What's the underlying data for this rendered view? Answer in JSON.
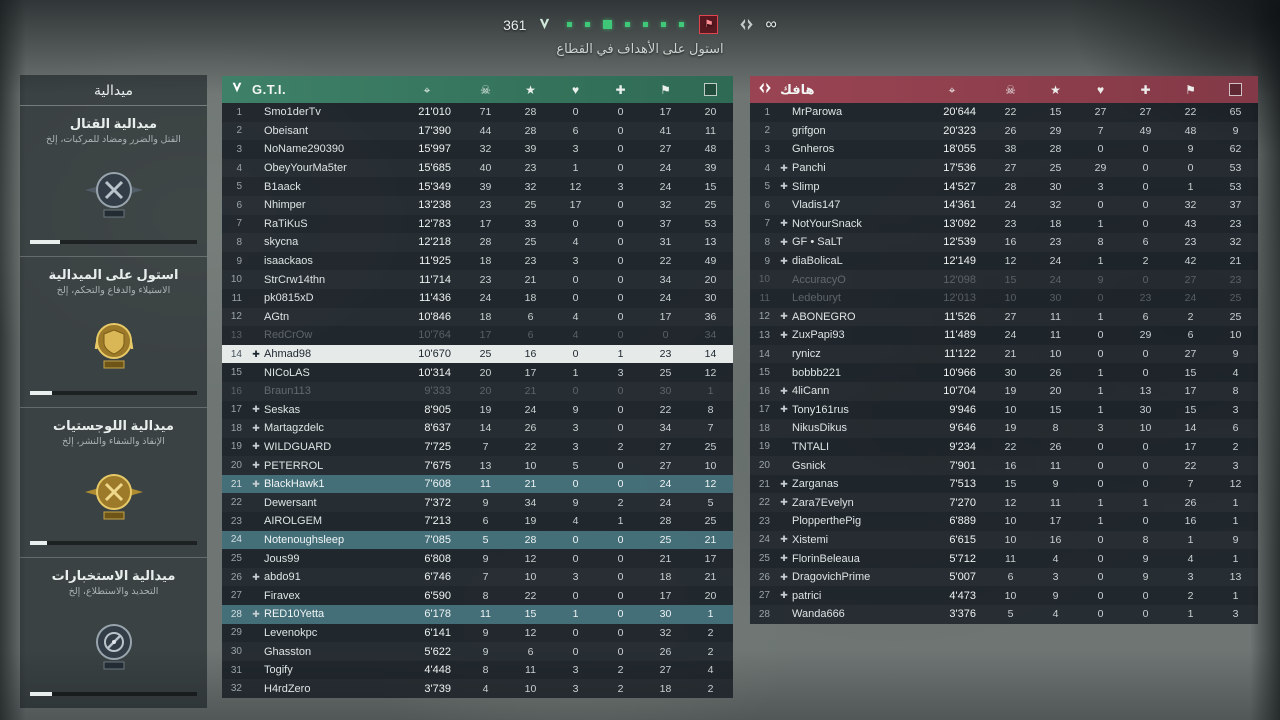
{
  "hud": {
    "tickets": "361",
    "enemy_tickets": "∞",
    "objective_hint": "استول على الأهداف في القطاع",
    "objective_count": 7,
    "accent_green": "#3fc878",
    "accent_red": "#e0444f"
  },
  "medals": {
    "title": "ميدالية",
    "sections": [
      {
        "icon": "combat-medal-icon",
        "title": "ميدالية القتال",
        "subtitle": "القتل والضرر ومضاد للمركبات، إلخ",
        "progress": 18
      },
      {
        "icon": "capture-medal-icon",
        "title": "استول على الميدالية",
        "subtitle": "الاستيلاء والدفاع والتحكم، إلخ",
        "progress": 13
      },
      {
        "icon": "logistics-medal-icon",
        "title": "ميدالية اللوجستيات",
        "subtitle": "الإنقاذ والشفاء والنشر، إلخ",
        "progress": 10
      },
      {
        "icon": "intel-medal-icon",
        "title": "ميدالية الاستخبارات",
        "subtitle": "التحديد والاستطلاع، إلخ",
        "progress": 13
      }
    ]
  },
  "columns": [
    {
      "name": "score-icon",
      "glyph": "⌖"
    },
    {
      "name": "kills-icon",
      "glyph": "☠"
    },
    {
      "name": "assists-icon",
      "glyph": "★"
    },
    {
      "name": "heals-icon",
      "glyph": "♥"
    },
    {
      "name": "revives-icon",
      "glyph": "✚"
    },
    {
      "name": "captures-icon",
      "glyph": "⚑"
    },
    {
      "name": "respawns-icon",
      "glyph": ""
    }
  ],
  "marker_glyph": "✚",
  "teams": [
    {
      "name": "G.T.I.",
      "color": "#3e8168",
      "color_dark": "#2f6a54",
      "players": [
        {
          "rank": 1,
          "name": "Smo1derTv",
          "score": "21'010",
          "stats": [
            71,
            28,
            0,
            0,
            17,
            20
          ],
          "state": "normal",
          "marker": false
        },
        {
          "rank": 2,
          "name": "Obeisant",
          "score": "17'390",
          "stats": [
            44,
            28,
            6,
            0,
            41,
            11
          ],
          "state": "normal",
          "marker": false
        },
        {
          "rank": 3,
          "name": "NoName290390",
          "score": "15'997",
          "stats": [
            32,
            39,
            3,
            0,
            27,
            48
          ],
          "state": "normal",
          "marker": false
        },
        {
          "rank": 4,
          "name": "ObeyYourMa5ter",
          "score": "15'685",
          "stats": [
            40,
            23,
            1,
            0,
            24,
            39
          ],
          "state": "normal",
          "marker": false
        },
        {
          "rank": 5,
          "name": "B1aack",
          "score": "15'349",
          "stats": [
            39,
            32,
            12,
            3,
            24,
            15
          ],
          "state": "normal",
          "marker": false
        },
        {
          "rank": 6,
          "name": "Nhimper",
          "score": "13'238",
          "stats": [
            23,
            25,
            17,
            0,
            32,
            25
          ],
          "state": "normal",
          "marker": false
        },
        {
          "rank": 7,
          "name": "RaTiKuS",
          "score": "12'783",
          "stats": [
            17,
            33,
            0,
            0,
            37,
            53
          ],
          "state": "normal",
          "marker": false
        },
        {
          "rank": 8,
          "name": "skycna",
          "score": "12'218",
          "stats": [
            28,
            25,
            4,
            0,
            31,
            13
          ],
          "state": "normal",
          "marker": false
        },
        {
          "rank": 9,
          "name": "isaackaos",
          "score": "11'925",
          "stats": [
            18,
            23,
            3,
            0,
            22,
            49
          ],
          "state": "normal",
          "marker": false
        },
        {
          "rank": 10,
          "name": "StrCrw14thn",
          "score": "11'714",
          "stats": [
            23,
            21,
            0,
            0,
            34,
            20
          ],
          "state": "normal",
          "marker": false
        },
        {
          "rank": 11,
          "name": "pk0815xD",
          "score": "11'436",
          "stats": [
            24,
            18,
            0,
            0,
            24,
            30
          ],
          "state": "normal",
          "marker": false
        },
        {
          "rank": 12,
          "name": "AGtn",
          "score": "10'846",
          "stats": [
            18,
            6,
            4,
            0,
            17,
            36
          ],
          "state": "normal",
          "marker": false
        },
        {
          "rank": 13,
          "name": "RedCrOw",
          "score": "10'764",
          "stats": [
            17,
            6,
            4,
            0,
            0,
            34
          ],
          "state": "dim",
          "marker": false
        },
        {
          "rank": 14,
          "name": "Ahmad98",
          "score": "10'670",
          "stats": [
            25,
            16,
            0,
            1,
            23,
            14
          ],
          "state": "self",
          "marker": true
        },
        {
          "rank": 15,
          "name": "NICoLAS",
          "score": "10'314",
          "stats": [
            20,
            17,
            1,
            3,
            25,
            12
          ],
          "state": "normal",
          "marker": false
        },
        {
          "rank": 16,
          "name": "Braun113",
          "score": "9'333",
          "stats": [
            20,
            21,
            0,
            0,
            30,
            1
          ],
          "state": "dim",
          "marker": false
        },
        {
          "rank": 17,
          "name": "Seskas",
          "score": "8'905",
          "stats": [
            19,
            24,
            9,
            0,
            22,
            8
          ],
          "state": "normal",
          "marker": true
        },
        {
          "rank": 18,
          "name": "Martagzdelc",
          "score": "8'637",
          "stats": [
            14,
            26,
            3,
            0,
            34,
            7
          ],
          "state": "normal",
          "marker": true
        },
        {
          "rank": 19,
          "name": "WILDGUARD",
          "score": "7'725",
          "stats": [
            7,
            22,
            3,
            2,
            27,
            25
          ],
          "state": "normal",
          "marker": true
        },
        {
          "rank": 20,
          "name": "PETERROL",
          "score": "7'675",
          "stats": [
            13,
            10,
            5,
            0,
            27,
            10
          ],
          "state": "normal",
          "marker": true
        },
        {
          "rank": 21,
          "name": "BlackHawk1",
          "score": "7'608",
          "stats": [
            11,
            21,
            0,
            0,
            24,
            12
          ],
          "state": "squad",
          "marker": true
        },
        {
          "rank": 22,
          "name": "Dewersant",
          "score": "7'372",
          "stats": [
            9,
            34,
            9,
            2,
            24,
            5
          ],
          "state": "normal",
          "marker": false
        },
        {
          "rank": 23,
          "name": "AIROLGEM",
          "score": "7'213",
          "stats": [
            6,
            19,
            4,
            1,
            28,
            25
          ],
          "state": "normal",
          "marker": false
        },
        {
          "rank": 24,
          "name": "Notenoughsleep",
          "score": "7'085",
          "stats": [
            5,
            28,
            0,
            0,
            25,
            21
          ],
          "state": "squad",
          "marker": false
        },
        {
          "rank": 25,
          "name": "Jous99",
          "score": "6'808",
          "stats": [
            9,
            12,
            0,
            0,
            21,
            17
          ],
          "state": "normal",
          "marker": false
        },
        {
          "rank": 26,
          "name": "abdo91",
          "score": "6'746",
          "stats": [
            7,
            10,
            3,
            0,
            18,
            21
          ],
          "state": "normal",
          "marker": true
        },
        {
          "rank": 27,
          "name": "Firavex",
          "score": "6'590",
          "stats": [
            8,
            22,
            0,
            0,
            17,
            20
          ],
          "state": "normal",
          "marker": false
        },
        {
          "rank": 28,
          "name": "RED10Yetta",
          "score": "6'178",
          "stats": [
            11,
            15,
            1,
            0,
            30,
            1
          ],
          "state": "squad",
          "marker": true
        },
        {
          "rank": 29,
          "name": "Levenokpc",
          "score": "6'141",
          "stats": [
            9,
            12,
            0,
            0,
            32,
            2
          ],
          "state": "normal",
          "marker": false
        },
        {
          "rank": 30,
          "name": "Ghasston",
          "score": "5'622",
          "stats": [
            9,
            6,
            0,
            0,
            26,
            2
          ],
          "state": "normal",
          "marker": false
        },
        {
          "rank": 31,
          "name": "Togify",
          "score": "4'448",
          "stats": [
            8,
            11,
            3,
            2,
            27,
            4
          ],
          "state": "normal",
          "marker": false
        },
        {
          "rank": 32,
          "name": "H4rdZero",
          "score": "3'739",
          "stats": [
            4,
            10,
            3,
            2,
            18,
            2
          ],
          "state": "normal",
          "marker": false
        }
      ]
    },
    {
      "name": "هافك",
      "color": "#9a4453",
      "color_dark": "#833947",
      "players": [
        {
          "rank": 1,
          "name": "MrParowa",
          "score": "20'644",
          "stats": [
            22,
            15,
            27,
            27,
            22,
            65
          ],
          "state": "normal",
          "marker": false
        },
        {
          "rank": 2,
          "name": "grifgon",
          "score": "20'323",
          "stats": [
            26,
            29,
            7,
            49,
            48,
            9
          ],
          "state": "normal",
          "marker": false
        },
        {
          "rank": 3,
          "name": "Gnheros",
          "score": "18'055",
          "stats": [
            38,
            28,
            0,
            0,
            9,
            62
          ],
          "state": "normal",
          "marker": false
        },
        {
          "rank": 4,
          "name": "Panchi",
          "score": "17'536",
          "stats": [
            27,
            25,
            29,
            0,
            0,
            53
          ],
          "state": "normal",
          "marker": true
        },
        {
          "rank": 5,
          "name": "Slimp",
          "score": "14'527",
          "stats": [
            28,
            30,
            3,
            0,
            1,
            53
          ],
          "state": "normal",
          "marker": true
        },
        {
          "rank": 6,
          "name": "Vladis147",
          "score": "14'361",
          "stats": [
            24,
            32,
            0,
            0,
            32,
            37
          ],
          "state": "normal",
          "marker": false
        },
        {
          "rank": 7,
          "name": "NotYourSnack",
          "score": "13'092",
          "stats": [
            23,
            18,
            1,
            0,
            43,
            23
          ],
          "state": "normal",
          "marker": true
        },
        {
          "rank": 8,
          "name": "GF • SaLT",
          "score": "12'539",
          "stats": [
            16,
            23,
            8,
            6,
            23,
            32
          ],
          "state": "normal",
          "marker": true
        },
        {
          "rank": 9,
          "name": "diaBolicaL",
          "score": "12'149",
          "stats": [
            12,
            24,
            1,
            2,
            42,
            21
          ],
          "state": "normal",
          "marker": true
        },
        {
          "rank": 10,
          "name": "AccuracyO",
          "score": "12'098",
          "stats": [
            15,
            24,
            9,
            0,
            27,
            23
          ],
          "state": "dim",
          "marker": false
        },
        {
          "rank": 11,
          "name": "Ledeburyt",
          "score": "12'013",
          "stats": [
            10,
            30,
            0,
            23,
            24,
            25
          ],
          "state": "dim",
          "marker": false
        },
        {
          "rank": 12,
          "name": "ABONEGRO",
          "score": "11'526",
          "stats": [
            27,
            11,
            1,
            6,
            2,
            25
          ],
          "state": "normal",
          "marker": true
        },
        {
          "rank": 13,
          "name": "ZuxPapi93",
          "score": "11'489",
          "stats": [
            24,
            11,
            0,
            29,
            6,
            10
          ],
          "state": "normal",
          "marker": true
        },
        {
          "rank": 14,
          "name": "rynicz",
          "score": "11'122",
          "stats": [
            21,
            10,
            0,
            0,
            27,
            9
          ],
          "state": "normal",
          "marker": false
        },
        {
          "rank": 15,
          "name": "bobbb221",
          "score": "10'966",
          "stats": [
            30,
            26,
            1,
            0,
            15,
            4
          ],
          "state": "normal",
          "marker": false
        },
        {
          "rank": 16,
          "name": "4liCann",
          "score": "10'704",
          "stats": [
            19,
            20,
            1,
            13,
            17,
            8
          ],
          "state": "normal",
          "marker": true
        },
        {
          "rank": 17,
          "name": "Tony161rus",
          "score": "9'946",
          "stats": [
            10,
            15,
            1,
            30,
            15,
            3
          ],
          "state": "normal",
          "marker": true
        },
        {
          "rank": 18,
          "name": "NikusDikus",
          "score": "9'646",
          "stats": [
            19,
            8,
            3,
            10,
            14,
            6
          ],
          "state": "normal",
          "marker": false
        },
        {
          "rank": 19,
          "name": "TNTALI",
          "score": "9'234",
          "stats": [
            22,
            26,
            0,
            0,
            17,
            2
          ],
          "state": "normal",
          "marker": false
        },
        {
          "rank": 20,
          "name": "Gsnick",
          "score": "7'901",
          "stats": [
            16,
            11,
            0,
            0,
            22,
            3
          ],
          "state": "normal",
          "marker": false
        },
        {
          "rank": 21,
          "name": "Zarganas",
          "score": "7'513",
          "stats": [
            15,
            9,
            0,
            0,
            7,
            12
          ],
          "state": "normal",
          "marker": true
        },
        {
          "rank": 22,
          "name": "Zara7Evelyn",
          "score": "7'270",
          "stats": [
            12,
            11,
            1,
            1,
            26,
            1
          ],
          "state": "normal",
          "marker": true
        },
        {
          "rank": 23,
          "name": "PlopperthePig",
          "score": "6'889",
          "stats": [
            10,
            17,
            1,
            0,
            16,
            1
          ],
          "state": "normal",
          "marker": false
        },
        {
          "rank": 24,
          "name": "Xistemi",
          "score": "6'615",
          "stats": [
            10,
            16,
            0,
            8,
            1,
            9
          ],
          "state": "normal",
          "marker": true
        },
        {
          "rank": 25,
          "name": "FlorinBeleaua",
          "score": "5'712",
          "stats": [
            11,
            4,
            0,
            9,
            4,
            1
          ],
          "state": "normal",
          "marker": true
        },
        {
          "rank": 26,
          "name": "DragovichPrime",
          "score": "5'007",
          "stats": [
            6,
            3,
            0,
            9,
            3,
            13
          ],
          "state": "normal",
          "marker": true
        },
        {
          "rank": 27,
          "name": "patrici",
          "score": "4'473",
          "stats": [
            10,
            9,
            0,
            0,
            2,
            1
          ],
          "state": "normal",
          "marker": true
        },
        {
          "rank": 28,
          "name": "Wanda666",
          "score": "3'376",
          "stats": [
            5,
            4,
            0,
            0,
            1,
            3
          ],
          "state": "normal",
          "marker": false
        }
      ]
    }
  ]
}
